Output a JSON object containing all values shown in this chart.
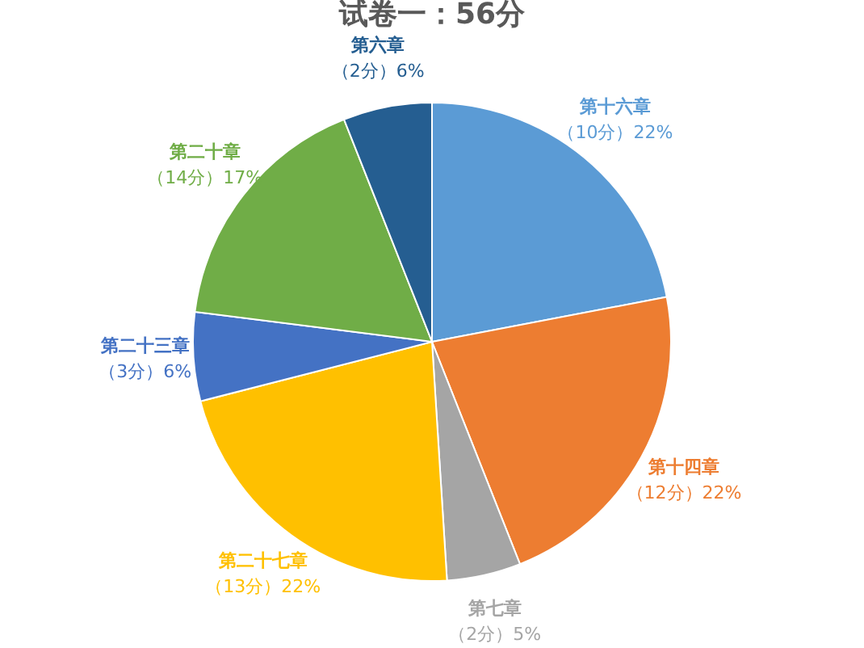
{
  "chart_data": {
    "type": "pie",
    "title": "试卷一：56分",
    "categories": [
      "第十六章",
      "第十四章",
      "第七章",
      "第二十七章",
      "第二十三章",
      "第二十章",
      "第六章"
    ],
    "values": [
      22,
      22,
      5,
      22,
      6,
      17,
      6
    ],
    "value_labels": [
      "（10分）22%",
      "（12分）22%",
      "（2分）5%",
      "（13分）22%",
      "（3分）6%",
      "（14分）17%",
      "（2分）6%"
    ],
    "colors": [
      "#5b9bd5",
      "#ed7d31",
      "#a5a5a5",
      "#ffc000",
      "#4472c4",
      "#70ad47",
      "#255e91"
    ],
    "legend": false
  }
}
